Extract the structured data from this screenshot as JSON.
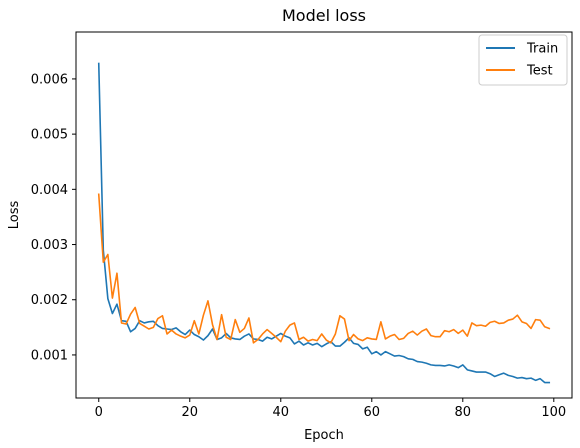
{
  "chart_data": {
    "type": "line",
    "title": "Model loss",
    "xlabel": "Epoch",
    "ylabel": "Loss",
    "xlim": [
      -5,
      104
    ],
    "ylim": [
      0.00022,
      0.00685
    ],
    "xticks": [
      0,
      20,
      40,
      60,
      80,
      100
    ],
    "yticks": [
      0.001,
      0.002,
      0.003,
      0.004,
      0.005,
      0.006
    ],
    "ytick_labels": [
      "0.001",
      "0.002",
      "0.003",
      "0.004",
      "0.005",
      "0.006"
    ],
    "grid": false,
    "legend_position": "top-right",
    "series": [
      {
        "name": "Train",
        "color": "#1f77b4",
        "x": [
          0,
          1,
          2,
          3,
          4,
          5,
          6,
          7,
          8,
          9,
          10,
          11,
          12,
          13,
          14,
          15,
          16,
          17,
          18,
          19,
          20,
          21,
          22,
          23,
          24,
          25,
          26,
          27,
          28,
          29,
          30,
          31,
          32,
          33,
          34,
          35,
          36,
          37,
          38,
          39,
          40,
          41,
          42,
          43,
          44,
          45,
          46,
          47,
          48,
          49,
          50,
          51,
          52,
          53,
          54,
          55,
          56,
          57,
          58,
          59,
          60,
          61,
          62,
          63,
          64,
          65,
          66,
          67,
          68,
          69,
          70,
          71,
          72,
          73,
          74,
          75,
          76,
          77,
          78,
          79,
          80,
          81,
          82,
          83,
          84,
          85,
          86,
          87,
          88,
          89,
          90,
          91,
          92,
          93,
          94,
          95,
          96,
          97,
          98,
          99
        ],
        "values": [
          0.00628,
          0.0029,
          0.00202,
          0.00175,
          0.00192,
          0.00162,
          0.00161,
          0.00142,
          0.00148,
          0.00162,
          0.00158,
          0.0016,
          0.00161,
          0.00153,
          0.00148,
          0.00147,
          0.00146,
          0.00149,
          0.00142,
          0.00137,
          0.00145,
          0.00137,
          0.00133,
          0.00127,
          0.00135,
          0.00147,
          0.00128,
          0.00131,
          0.00139,
          0.00131,
          0.00129,
          0.00128,
          0.00134,
          0.00138,
          0.00129,
          0.00128,
          0.00125,
          0.00132,
          0.00129,
          0.00134,
          0.00139,
          0.00134,
          0.00131,
          0.0012,
          0.00125,
          0.00118,
          0.00122,
          0.00118,
          0.00121,
          0.00115,
          0.0012,
          0.00124,
          0.00116,
          0.00116,
          0.00123,
          0.00131,
          0.00121,
          0.00119,
          0.00111,
          0.00114,
          0.00102,
          0.00106,
          0.001,
          0.00106,
          0.00102,
          0.00098,
          0.00099,
          0.00097,
          0.00093,
          0.00092,
          0.00088,
          0.00087,
          0.00085,
          0.00082,
          0.00081,
          0.00081,
          0.0008,
          0.00082,
          0.0008,
          0.00077,
          0.00082,
          0.00073,
          0.00071,
          0.00069,
          0.00069,
          0.00069,
          0.00066,
          0.00061,
          0.00064,
          0.00067,
          0.00063,
          0.00061,
          0.00058,
          0.00059,
          0.00057,
          0.00058,
          0.00054,
          0.00057,
          0.0005,
          0.0005
        ]
      },
      {
        "name": "Test",
        "color": "#ff7f0e",
        "x": [
          0,
          1,
          2,
          3,
          4,
          5,
          6,
          7,
          8,
          9,
          10,
          11,
          12,
          13,
          14,
          15,
          16,
          17,
          18,
          19,
          20,
          21,
          22,
          23,
          24,
          25,
          26,
          27,
          28,
          29,
          30,
          31,
          32,
          33,
          34,
          35,
          36,
          37,
          38,
          39,
          40,
          41,
          42,
          43,
          44,
          45,
          46,
          47,
          48,
          49,
          50,
          51,
          52,
          53,
          54,
          55,
          56,
          57,
          58,
          59,
          60,
          61,
          62,
          63,
          64,
          65,
          66,
          67,
          68,
          69,
          70,
          71,
          72,
          73,
          74,
          75,
          76,
          77,
          78,
          79,
          80,
          81,
          82,
          83,
          84,
          85,
          86,
          87,
          88,
          89,
          90,
          91,
          92,
          93,
          94,
          95,
          96,
          97,
          98,
          99
        ],
        "values": [
          0.00391,
          0.00268,
          0.00282,
          0.00203,
          0.00248,
          0.00158,
          0.00156,
          0.00174,
          0.00186,
          0.00157,
          0.00152,
          0.00147,
          0.0015,
          0.00166,
          0.00171,
          0.00138,
          0.00145,
          0.00138,
          0.00134,
          0.00131,
          0.00136,
          0.00162,
          0.00138,
          0.00172,
          0.00198,
          0.00155,
          0.00128,
          0.00173,
          0.00132,
          0.00128,
          0.00164,
          0.00141,
          0.00148,
          0.00167,
          0.00122,
          0.00128,
          0.00138,
          0.00146,
          0.00139,
          0.00132,
          0.00124,
          0.00143,
          0.00154,
          0.00158,
          0.00128,
          0.00132,
          0.00125,
          0.00128,
          0.00126,
          0.00138,
          0.00127,
          0.00122,
          0.00138,
          0.00171,
          0.00165,
          0.00126,
          0.00137,
          0.00129,
          0.00126,
          0.00131,
          0.00129,
          0.00128,
          0.0016,
          0.00129,
          0.00134,
          0.00137,
          0.00128,
          0.0013,
          0.00139,
          0.00143,
          0.00136,
          0.00143,
          0.00147,
          0.00135,
          0.00133,
          0.00133,
          0.00144,
          0.00142,
          0.00146,
          0.00139,
          0.00145,
          0.00134,
          0.00158,
          0.00153,
          0.00154,
          0.00152,
          0.00159,
          0.00161,
          0.00157,
          0.00158,
          0.00163,
          0.00165,
          0.00172,
          0.0016,
          0.00157,
          0.00148,
          0.00164,
          0.00163,
          0.00151,
          0.00148
        ]
      }
    ]
  }
}
